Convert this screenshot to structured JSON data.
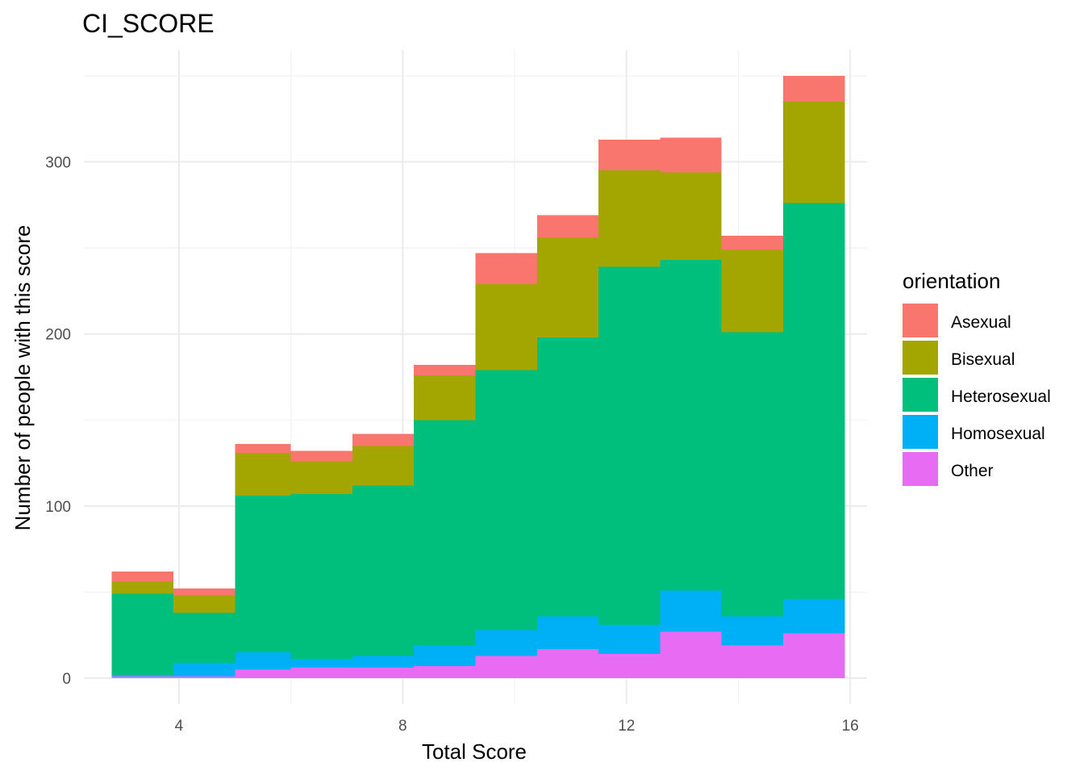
{
  "chart_data": {
    "type": "bar",
    "stacked": true,
    "title": "CI_SCORE",
    "xlabel": "Total Score",
    "ylabel": "Number of people with this score",
    "xlim": [
      2.3,
      16.3
    ],
    "ylim": [
      -15,
      365
    ],
    "xticks": [
      4,
      8,
      12,
      16
    ],
    "yticks": [
      0,
      100,
      200,
      300
    ],
    "x_minor_gridlines": [
      6,
      10,
      14
    ],
    "y_minor_gridlines": [
      50,
      150,
      250,
      350
    ],
    "grid": true,
    "legend": {
      "title": "orientation",
      "position": "right"
    },
    "bins": [
      [
        2.8,
        3.9
      ],
      [
        3.9,
        5.0
      ],
      [
        5.0,
        6.0
      ],
      [
        6.0,
        7.1
      ],
      [
        7.1,
        8.2
      ],
      [
        8.2,
        9.3
      ],
      [
        9.3,
        10.4
      ],
      [
        10.4,
        11.5
      ],
      [
        11.5,
        12.6
      ],
      [
        12.6,
        13.7
      ],
      [
        13.7,
        14.8
      ],
      [
        14.8,
        15.9
      ]
    ],
    "series": [
      {
        "name": "Other",
        "color": "#E76BF3",
        "values": [
          1,
          1,
          5,
          6,
          6,
          7,
          13,
          17,
          14,
          27,
          19,
          26
        ]
      },
      {
        "name": "Homosexual",
        "color": "#00B0F6",
        "values": [
          1,
          8,
          10,
          5,
          7,
          12,
          15,
          19,
          17,
          24,
          17,
          20
        ]
      },
      {
        "name": "Heterosexual",
        "color": "#00BF7D",
        "values": [
          47,
          29,
          91,
          96,
          99,
          131,
          151,
          162,
          208,
          192,
          165,
          230
        ]
      },
      {
        "name": "Bisexual",
        "color": "#A3A500",
        "values": [
          7,
          10,
          25,
          19,
          23,
          26,
          50,
          58,
          56,
          51,
          48,
          59
        ]
      },
      {
        "name": "Asexual",
        "color": "#F8766D",
        "values": [
          6,
          4,
          5,
          6,
          7,
          6,
          18,
          13,
          18,
          20,
          8,
          15
        ]
      }
    ],
    "legend_order": [
      "Asexual",
      "Bisexual",
      "Heterosexual",
      "Homosexual",
      "Other"
    ]
  }
}
